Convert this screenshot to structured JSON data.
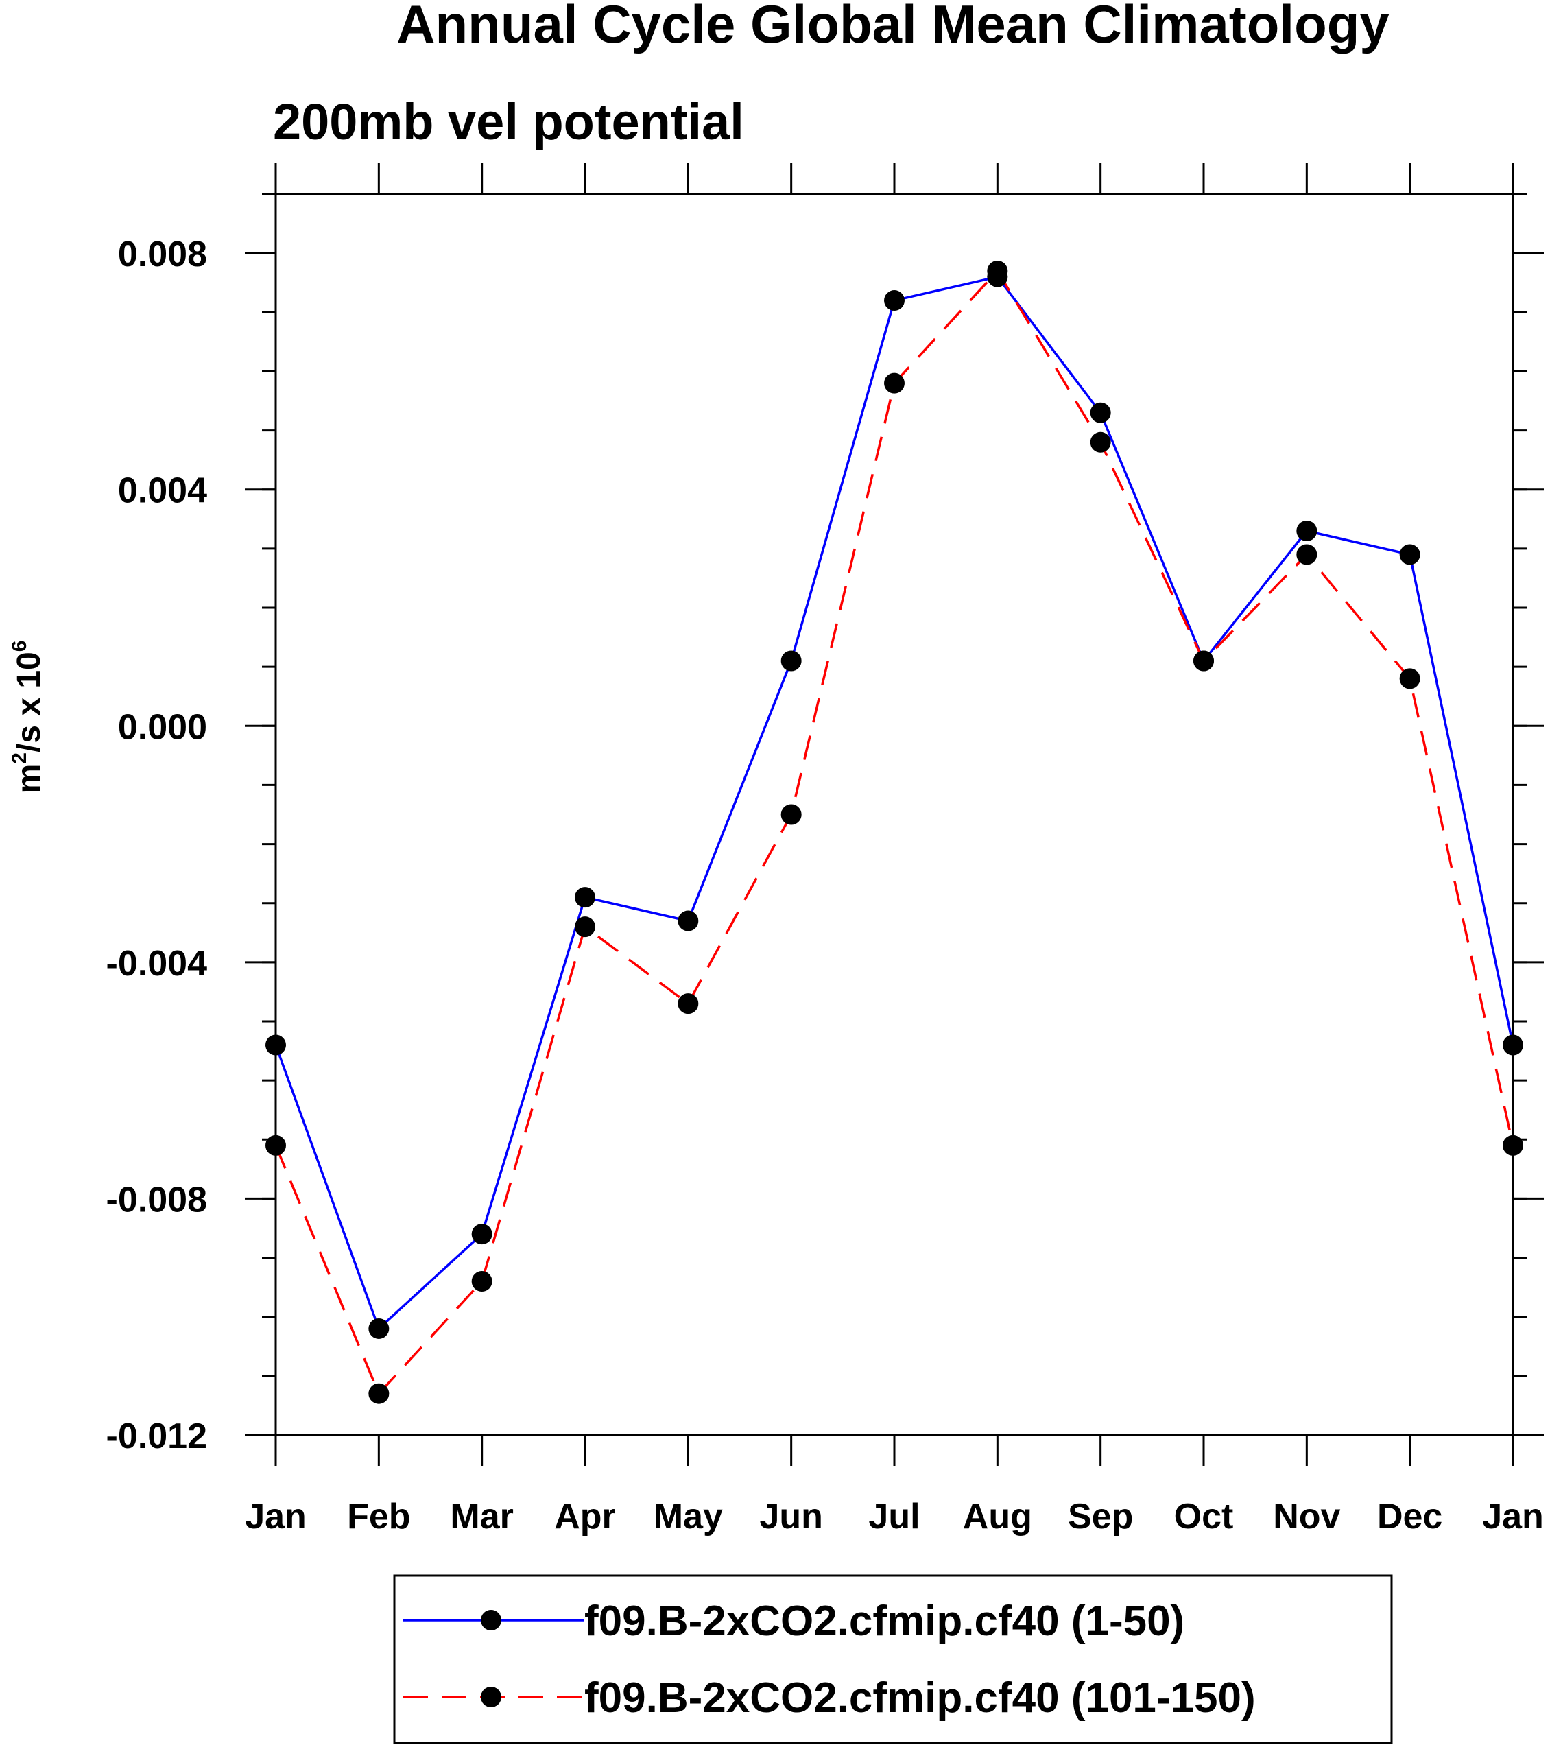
{
  "chart_data": {
    "type": "line",
    "title": "Annual Cycle Global Mean Climatology",
    "subtitle": "200mb vel potential",
    "ylabel_base": "m",
    "ylabel_sup1": "2",
    "ylabel_mid": "/s x 10",
    "ylabel_sup2": "6",
    "xlabel": "",
    "categories": [
      "Jan",
      "Feb",
      "Mar",
      "Apr",
      "May",
      "Jun",
      "Jul",
      "Aug",
      "Sep",
      "Oct",
      "Nov",
      "Dec",
      "Jan"
    ],
    "ylim": [
      -0.012,
      0.009
    ],
    "yticks": [
      -0.012,
      -0.008,
      -0.004,
      0.0,
      0.004,
      0.008
    ],
    "ytick_labels": [
      "-0.012",
      "-0.008",
      "-0.004",
      "0.000",
      "0.004",
      "0.008"
    ],
    "yminor_step": 0.001,
    "series": [
      {
        "name": "f09.B-2xCO2.cfmip.cf40 (1-50)",
        "color": "#0000ff",
        "dash": "solid",
        "values": [
          -0.0054,
          -0.0102,
          -0.0086,
          -0.0029,
          -0.0033,
          0.0011,
          0.0072,
          0.0076,
          0.0053,
          0.0011,
          0.0033,
          0.0029,
          -0.0054
        ]
      },
      {
        "name": "f09.B-2xCO2.cfmip.cf40 (101-150)",
        "color": "#ff0000",
        "dash": "dashed",
        "values": [
          -0.0071,
          -0.0113,
          -0.0094,
          -0.0034,
          -0.0047,
          -0.0015,
          0.0058,
          0.0077,
          0.0048,
          0.0011,
          0.0029,
          0.0008,
          -0.0071
        ]
      }
    ],
    "marker": "filled-circle",
    "marker_color": "#000000",
    "legend_position": "bottom"
  }
}
